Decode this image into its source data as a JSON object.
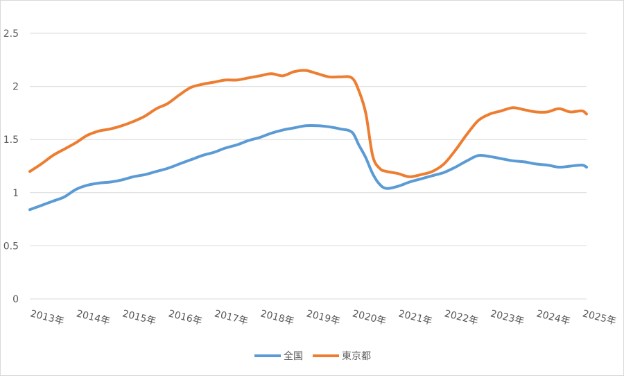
{
  "chart_data": {
    "type": "line",
    "title": "",
    "xlabel": "",
    "ylabel": "",
    "ylim": [
      0,
      2.5
    ],
    "yticks": [
      "0",
      "0.5",
      "1",
      "1.5",
      "2",
      "2.5"
    ],
    "xticks": [
      "2013年",
      "2014年",
      "2015年",
      "2016年",
      "2017年",
      "2018年",
      "2019年",
      "2020年",
      "2021年",
      "2022年",
      "2023年",
      "2024年",
      "2025年"
    ],
    "grid": "horizontal",
    "legend": "bottom",
    "series": [
      {
        "name": "全国",
        "color": "#5b9bd5",
        "points": [
          [
            2013.0,
            0.84
          ],
          [
            2013.25,
            0.88
          ],
          [
            2013.5,
            0.92
          ],
          [
            2013.75,
            0.96
          ],
          [
            2014.0,
            1.03
          ],
          [
            2014.25,
            1.07
          ],
          [
            2014.5,
            1.09
          ],
          [
            2014.75,
            1.1
          ],
          [
            2015.0,
            1.12
          ],
          [
            2015.25,
            1.15
          ],
          [
            2015.5,
            1.17
          ],
          [
            2015.75,
            1.2
          ],
          [
            2016.0,
            1.23
          ],
          [
            2016.25,
            1.27
          ],
          [
            2016.5,
            1.31
          ],
          [
            2016.75,
            1.35
          ],
          [
            2017.0,
            1.38
          ],
          [
            2017.25,
            1.42
          ],
          [
            2017.5,
            1.45
          ],
          [
            2017.75,
            1.49
          ],
          [
            2018.0,
            1.52
          ],
          [
            2018.25,
            1.56
          ],
          [
            2018.5,
            1.59
          ],
          [
            2018.75,
            1.61
          ],
          [
            2019.0,
            1.63
          ],
          [
            2019.25,
            1.63
          ],
          [
            2019.5,
            1.62
          ],
          [
            2019.75,
            1.6
          ],
          [
            2020.0,
            1.57
          ],
          [
            2020.15,
            1.45
          ],
          [
            2020.3,
            1.33
          ],
          [
            2020.45,
            1.18
          ],
          [
            2020.6,
            1.08
          ],
          [
            2020.75,
            1.04
          ],
          [
            2021.0,
            1.06
          ],
          [
            2021.25,
            1.1
          ],
          [
            2021.5,
            1.13
          ],
          [
            2021.75,
            1.16
          ],
          [
            2022.0,
            1.19
          ],
          [
            2022.25,
            1.24
          ],
          [
            2022.5,
            1.3
          ],
          [
            2022.75,
            1.35
          ],
          [
            2023.0,
            1.34
          ],
          [
            2023.25,
            1.32
          ],
          [
            2023.5,
            1.3
          ],
          [
            2023.75,
            1.29
          ],
          [
            2024.0,
            1.27
          ],
          [
            2024.25,
            1.26
          ],
          [
            2024.5,
            1.24
          ],
          [
            2024.75,
            1.25
          ],
          [
            2025.0,
            1.26
          ],
          [
            2025.1,
            1.24
          ]
        ]
      },
      {
        "name": "東京都",
        "color": "#ed7d31",
        "points": [
          [
            2013.0,
            1.2
          ],
          [
            2013.25,
            1.27
          ],
          [
            2013.5,
            1.35
          ],
          [
            2013.75,
            1.41
          ],
          [
            2014.0,
            1.47
          ],
          [
            2014.25,
            1.54
          ],
          [
            2014.5,
            1.58
          ],
          [
            2014.75,
            1.6
          ],
          [
            2015.0,
            1.63
          ],
          [
            2015.25,
            1.67
          ],
          [
            2015.5,
            1.72
          ],
          [
            2015.75,
            1.79
          ],
          [
            2016.0,
            1.84
          ],
          [
            2016.25,
            1.92
          ],
          [
            2016.5,
            1.99
          ],
          [
            2016.75,
            2.02
          ],
          [
            2017.0,
            2.04
          ],
          [
            2017.25,
            2.06
          ],
          [
            2017.5,
            2.06
          ],
          [
            2017.75,
            2.08
          ],
          [
            2018.0,
            2.1
          ],
          [
            2018.25,
            2.12
          ],
          [
            2018.5,
            2.1
          ],
          [
            2018.75,
            2.14
          ],
          [
            2019.0,
            2.15
          ],
          [
            2019.25,
            2.12
          ],
          [
            2019.5,
            2.09
          ],
          [
            2019.75,
            2.09
          ],
          [
            2020.0,
            2.08
          ],
          [
            2020.15,
            1.96
          ],
          [
            2020.3,
            1.75
          ],
          [
            2020.45,
            1.35
          ],
          [
            2020.6,
            1.23
          ],
          [
            2020.75,
            1.2
          ],
          [
            2021.0,
            1.18
          ],
          [
            2021.25,
            1.15
          ],
          [
            2021.5,
            1.17
          ],
          [
            2021.75,
            1.2
          ],
          [
            2022.0,
            1.27
          ],
          [
            2022.25,
            1.4
          ],
          [
            2022.5,
            1.55
          ],
          [
            2022.75,
            1.68
          ],
          [
            2023.0,
            1.74
          ],
          [
            2023.25,
            1.77
          ],
          [
            2023.5,
            1.8
          ],
          [
            2023.75,
            1.78
          ],
          [
            2024.0,
            1.76
          ],
          [
            2024.25,
            1.76
          ],
          [
            2024.5,
            1.79
          ],
          [
            2024.75,
            1.76
          ],
          [
            2025.0,
            1.77
          ],
          [
            2025.1,
            1.74
          ]
        ]
      }
    ]
  }
}
